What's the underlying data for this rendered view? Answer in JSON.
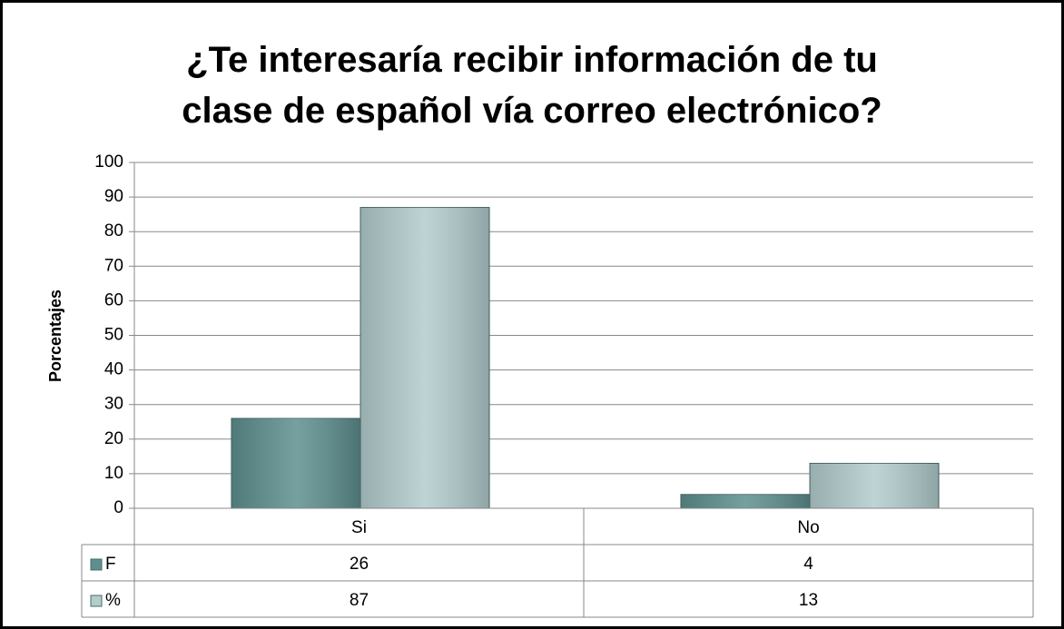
{
  "chart_data": {
    "type": "bar",
    "title": "¿Te interesaría recibir información de tu clase de español vía correo electrónico?",
    "y_label": "Porcentajes",
    "categories": [
      "Si",
      "No"
    ],
    "series": [
      {
        "name": "F",
        "color": "#5e8f8f",
        "values": [
          26,
          4
        ]
      },
      {
        "name": "%",
        "color": "#b3cdcd",
        "values": [
          87,
          13
        ]
      }
    ],
    "ylim": [
      0,
      100
    ],
    "yticks": [
      0,
      10,
      20,
      30,
      40,
      50,
      60,
      70,
      80,
      90,
      100
    ],
    "grid": true,
    "data_table": true
  }
}
